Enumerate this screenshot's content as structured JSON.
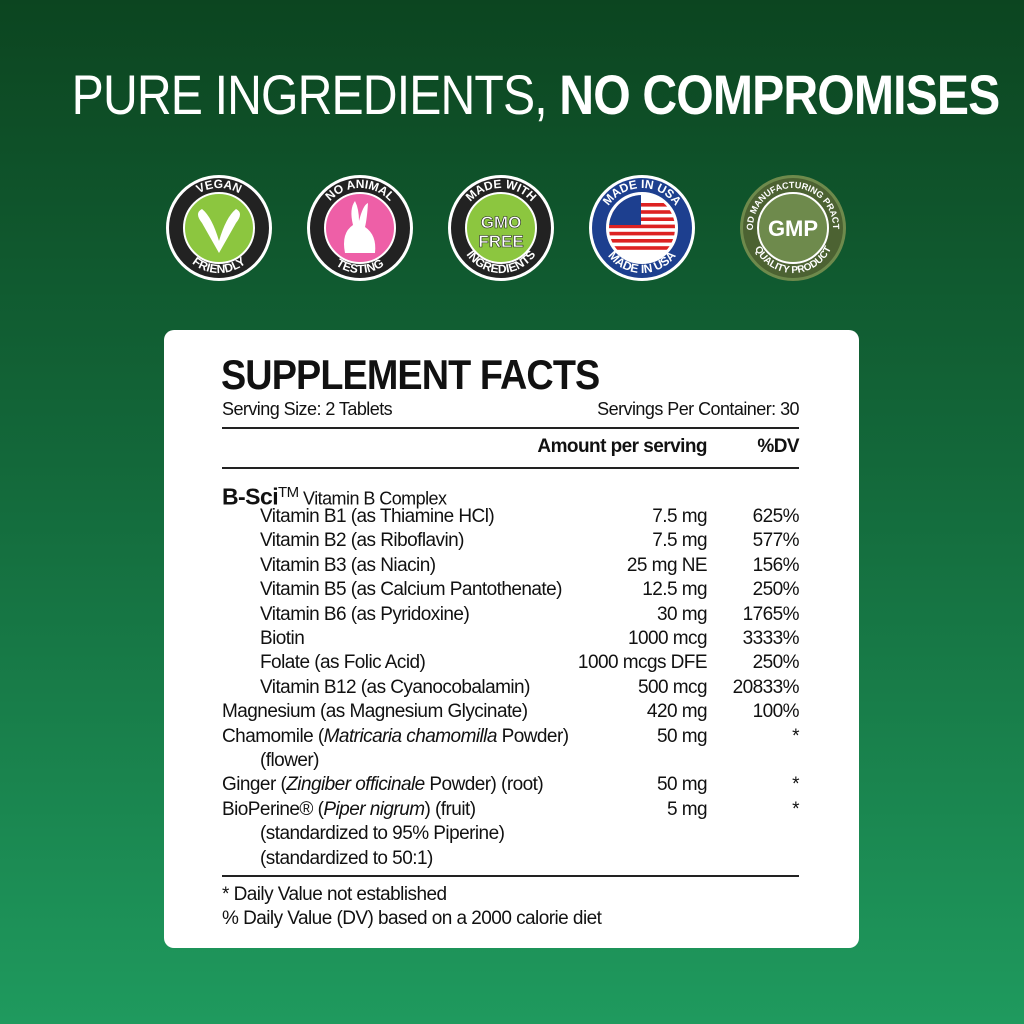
{
  "headline": {
    "light": "PURE INGREDIENTS, ",
    "bold": "NO COMPROMISES"
  },
  "badges": [
    {
      "icon": "vegan-leaf-icon",
      "top": "VEGAN",
      "bottom": "FRIENDLY",
      "color": "#8cc63f"
    },
    {
      "icon": "rabbit-icon",
      "top": "NO ANIMAL",
      "bottom": "TESTING",
      "color": "#ee5fa7"
    },
    {
      "icon": "gmo-free-icon",
      "top": "MADE WITH",
      "bottom": "INGREDIENTS",
      "center1": "GMO",
      "center2": "FREE",
      "color": "#8cc63f"
    },
    {
      "icon": "usa-flag-icon",
      "top": "MADE IN USA",
      "bottom": "MADE IN USA",
      "color": "#1d3f8f"
    },
    {
      "icon": "gmp-seal-icon",
      "top": "GOOD MANUFACTURING PRACTICE",
      "bottom": "QUALITY PRODUCT",
      "center1": "GMP",
      "color": "#5f7a3e"
    }
  ],
  "facts": {
    "title": "SUPPLEMENT FACTS",
    "serving_size": "Serving Size: 2 Tablets",
    "servings_per_container": "Servings Per Container: 30",
    "amount_header": "Amount per serving",
    "dv_header": "%DV",
    "group_name": "B-Sci",
    "group_tm": "TM",
    "group_desc": " Vitamin B Complex",
    "rows": [
      {
        "name": "Vitamin B1 (as Thiamine HCl)",
        "amount": "7.5 mg",
        "dv": "625%",
        "indent": true
      },
      {
        "name": "Vitamin B2 (as Riboflavin)",
        "amount": "7.5 mg",
        "dv": "577%",
        "indent": true
      },
      {
        "name": "Vitamin B3 (as Niacin)",
        "amount": "25 mg NE",
        "dv": "156%",
        "indent": true
      },
      {
        "name": "Vitamin B5 (as Calcium Pantothenate)",
        "amount": "12.5 mg",
        "dv": "250%",
        "indent": true
      },
      {
        "name": "Vitamin B6 (as Pyridoxine)",
        "amount": "30 mg",
        "dv": "1765%",
        "indent": true
      },
      {
        "name": "Biotin",
        "amount": "1000 mcg",
        "dv": "3333%",
        "indent": true
      },
      {
        "name": "Folate (as Folic Acid)",
        "amount": "1000 mcgs DFE",
        "dv": "250%",
        "indent": true
      },
      {
        "name": "Vitamin B12 (as Cyanocobalamin)",
        "amount": "500 mcg",
        "dv": "20833%",
        "indent": true
      },
      {
        "name": "Magnesium (as Magnesium Glycinate)",
        "amount": "420 mg",
        "dv": "100%",
        "indent": false
      },
      {
        "name": "Chamomile (",
        "italic": "Matricaria chamomilla",
        "after": " Powder)",
        "amount": "50 mg",
        "dv": "*",
        "indent": false
      },
      {
        "name": "(flower)",
        "amount": "",
        "dv": "",
        "indent": true
      },
      {
        "name": "Ginger (",
        "italic": "Zingiber officinale",
        "after": " Powder) (root)",
        "amount": "50 mg",
        "dv": "*",
        "indent": false
      },
      {
        "name": "BioPerine® (",
        "italic": "Piper nigrum",
        "after": ") (fruit)",
        "amount": "5 mg",
        "dv": "*",
        "indent": false
      },
      {
        "name": "(standardized to 95% Piperine)",
        "amount": "",
        "dv": "",
        "indent": true
      },
      {
        "name": "(standardized to 50:1)",
        "amount": "",
        "dv": "",
        "indent": true
      }
    ],
    "footnote1": "*  Daily Value not established",
    "footnote2": "% Daily Value (DV) based on a 2000 calorie diet"
  }
}
